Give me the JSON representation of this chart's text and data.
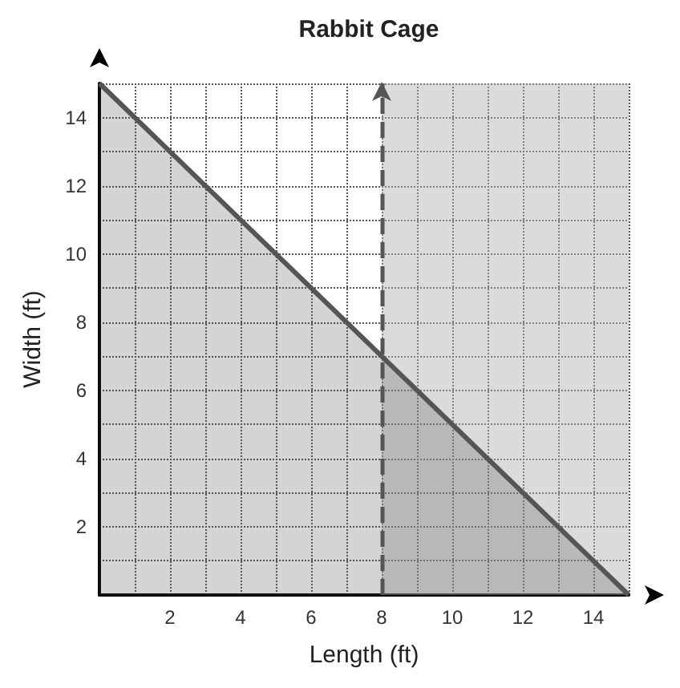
{
  "chart_data": {
    "type": "area",
    "title": "Rabbit Cage",
    "xlabel": "Length (ft)",
    "ylabel": "Width (ft)",
    "series": [
      {
        "x": [
          0,
          15
        ],
        "values": [
          15,
          0
        ],
        "color": "#555555"
      }
    ],
    "xlim": [
      0,
      15
    ],
    "ylim": [
      0,
      15
    ],
    "xticks": [
      {
        "value": 1,
        "label": null
      },
      2,
      {
        "value": 3,
        "label": null
      },
      4,
      {
        "value": 5,
        "label": null
      },
      6,
      {
        "value": 7,
        "label": null
      },
      8,
      {
        "value": 9,
        "label": null
      },
      10,
      {
        "value": 11,
        "label": null
      },
      12,
      {
        "value": 13,
        "label": null
      },
      14,
      {
        "value": 15,
        "label": null
      }
    ],
    "yticks": [
      {
        "value": 1,
        "label": null
      },
      2,
      {
        "value": 3,
        "label": null
      },
      4,
      {
        "value": 5,
        "label": null
      },
      6,
      {
        "value": 7,
        "label": null
      },
      8,
      {
        "value": 9,
        "label": null
      },
      10,
      {
        "value": 11,
        "label": null
      },
      12,
      {
        "value": 13,
        "label": null
      },
      14,
      {
        "value": 15,
        "label": null
      }
    ],
    "ref_lines": [
      {
        "axis": "x",
        "value": 8,
        "line_style": "dashed",
        "color": "#555555"
      }
    ],
    "bands": [
      {
        "axis": "x",
        "from": 8,
        "to": 15,
        "color": "#b0b0b0"
      }
    ],
    "grid": true,
    "marker": "none"
  }
}
